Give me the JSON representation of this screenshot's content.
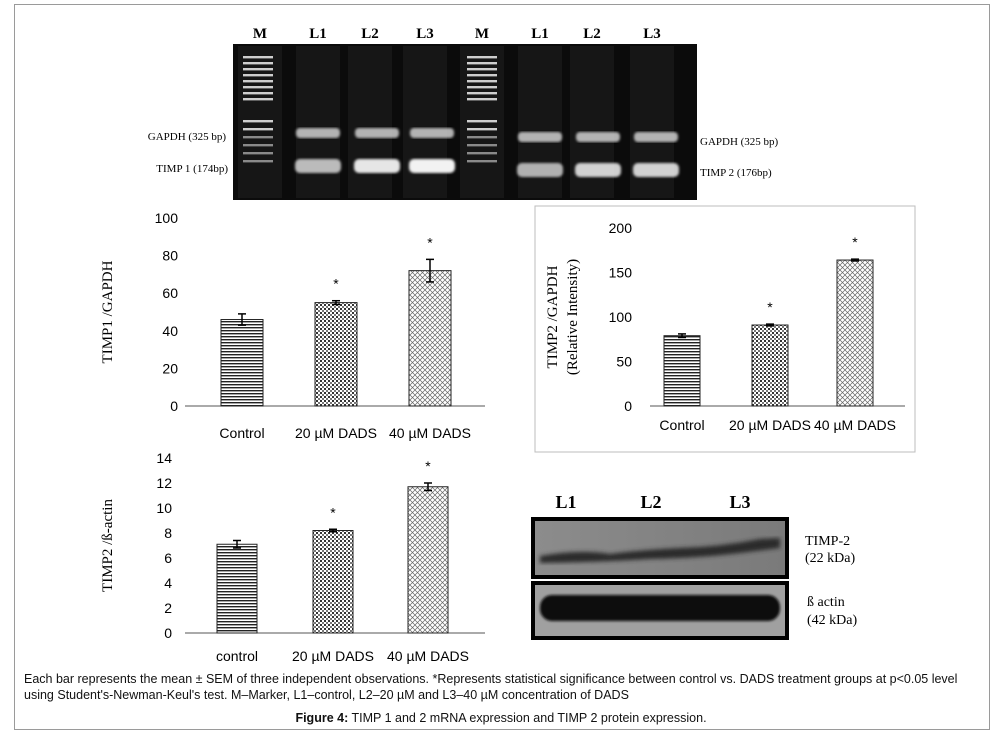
{
  "gel": {
    "lanes": [
      "M",
      "L1",
      "L2",
      "L3",
      "M",
      "L1",
      "L2",
      "L3"
    ],
    "left_labels": [
      "GAPDH (325 bp)",
      "TIMP 1 (174bp)"
    ],
    "right_labels": [
      "GAPDH (325 bp)",
      "TIMP 2 (176bp)"
    ]
  },
  "chart_data": [
    {
      "type": "bar",
      "categories": [
        "Control",
        "20 µM DADS",
        "40 µM DADS"
      ],
      "values": [
        46,
        55,
        72
      ],
      "errors": [
        3,
        1,
        6
      ],
      "significance": [
        "",
        "*",
        "*"
      ],
      "ylabel": "TIMP1 /GAPDH",
      "ylim": [
        0,
        100
      ],
      "yticks": [
        0,
        20,
        40,
        60,
        80,
        100
      ]
    },
    {
      "type": "bar",
      "categories": [
        "Control",
        "20 µM DADS",
        "40 µM DADS"
      ],
      "values": [
        79,
        91,
        164
      ],
      "errors": [
        2,
        1,
        1
      ],
      "significance": [
        "",
        "*",
        "*"
      ],
      "ylabel": "TIMP2 /GAPDH",
      "ylabel2": "(Relative Intensity)",
      "ylim": [
        0,
        200
      ],
      "yticks": [
        0,
        50,
        100,
        150,
        200
      ]
    },
    {
      "type": "bar",
      "categories": [
        "control",
        "20 µM DADS",
        "40 µM DADS"
      ],
      "values": [
        7.1,
        8.2,
        11.7
      ],
      "errors": [
        0.3,
        0.1,
        0.3
      ],
      "significance": [
        "",
        "*",
        "*"
      ],
      "ylabel": "TIMP2 /ß-actin",
      "ylim": [
        0,
        14
      ],
      "yticks": [
        0,
        2,
        4,
        6,
        8,
        10,
        12,
        14
      ]
    }
  ],
  "blot": {
    "lanes": [
      "L1",
      "L2",
      "L3"
    ],
    "timp_label": "TIMP-2",
    "timp_kda": "(22 kDa)",
    "actin_label": "ß actin",
    "actin_kda": "(42 kDa)"
  },
  "caption": "Each bar represents the mean ± SEM of three independent observations. *Represents statistical significance between control vs. DADS treatment groups at p<0.05 level using Student's-Newman-Keul's test. M–Marker, L1–control, L2–20 µM and L3–40 µM concentration of DADS",
  "figure": {
    "label": "Figure 4:",
    "title": "TIMP 1 and 2 mRNA expression and TIMP 2 protein expression."
  }
}
